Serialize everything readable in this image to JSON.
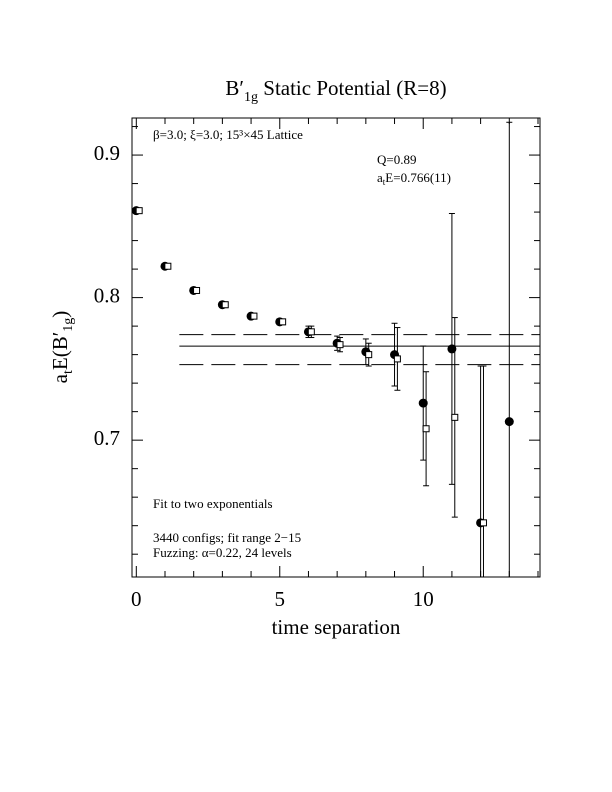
{
  "chart_data": {
    "type": "scatter",
    "title": [
      "B′",
      "1g",
      " Static Potential (R=8)"
    ],
    "y_label": [
      "a",
      "t",
      "E(B′",
      "1g",
      ")"
    ],
    "x_label": "time separation",
    "annotations": {
      "lattice": "β=3.0; ξ=3.0; 15³×45 Lattice",
      "q": "Q=0.89",
      "energy": [
        "a",
        "t",
        "E=0.766(11)"
      ],
      "method": "Fit to two exponentials",
      "configs": "3440 configs; fit range 2−15",
      "fuzzing": "Fuzzing: α=0.22, 24 levels"
    },
    "xlim": [
      -0.15,
      14.07
    ],
    "ylim": [
      0.604,
      0.926
    ],
    "xticks": [
      0,
      5,
      10
    ],
    "yticks": [
      0.7,
      0.8,
      0.9
    ],
    "xminor_ticks": [
      1,
      2,
      3,
      4,
      6,
      7,
      8,
      9,
      11,
      12,
      13,
      14
    ],
    "yminor_ticks": [
      0.62,
      0.64,
      0.66,
      0.68,
      0.72,
      0.74,
      0.76,
      0.78,
      0.82,
      0.84,
      0.86,
      0.88,
      0.92
    ],
    "series": [
      {
        "marker": "circle",
        "color": "#000",
        "x": [
          0,
          1,
          2,
          3,
          4,
          5,
          6,
          7,
          8,
          9,
          10,
          11,
          12,
          13
        ],
        "values": [
          0.861,
          0.822,
          0.805,
          0.795,
          0.787,
          0.783,
          0.776,
          0.768,
          0.762,
          0.76,
          0.726,
          0.764,
          0.642,
          0.713
        ],
        "errors": [
          0.001,
          0.001,
          0.001,
          0.002,
          0.002,
          0.002,
          0.004,
          0.005,
          0.009,
          0.022,
          0.04,
          0.095,
          0.11,
          0.21
        ]
      },
      {
        "marker": "square",
        "color": "#000",
        "x": [
          0.1,
          1.1,
          2.1,
          3.1,
          4.1,
          5.1,
          6.1,
          7.1,
          8.1,
          9.1,
          10.1,
          11.1,
          12.1
        ],
        "values": [
          0.861,
          0.822,
          0.805,
          0.795,
          0.787,
          0.783,
          0.776,
          0.767,
          0.76,
          0.757,
          0.708,
          0.716,
          0.642
        ],
        "errors": [
          0.001,
          0.001,
          0.001,
          0.002,
          0.002,
          0.002,
          0.004,
          0.005,
          0.008,
          0.022,
          0.04,
          0.07,
          0.11
        ]
      }
    ],
    "fit": {
      "x": [
        1.5,
        14.07
      ],
      "value": 0.766,
      "lower": 0.753,
      "upper": 0.774
    }
  }
}
